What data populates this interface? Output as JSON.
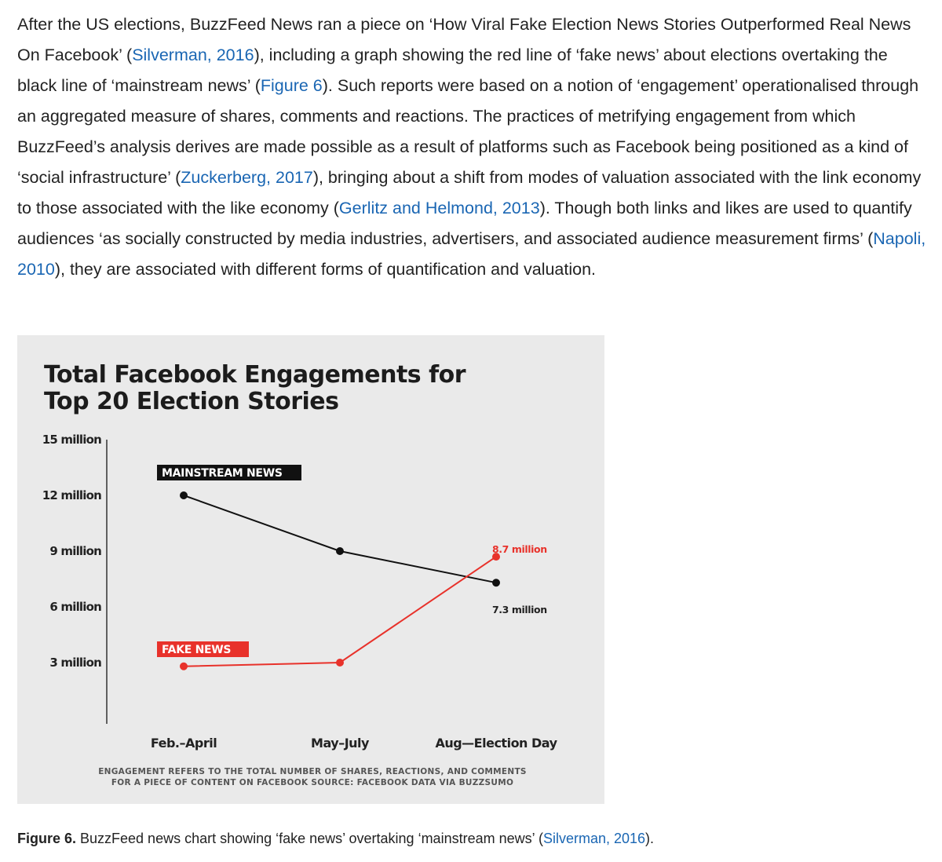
{
  "paragraph": {
    "t1": "After the US elections, BuzzFeed News ran a piece on ‘How Viral Fake Election News Stories Outperformed Real News On Facebook’ (",
    "link1": "Silverman, 2016",
    "t2": "), including a graph showing the red line of ‘fake news’ about elections overtaking the black line of ‘mainstream news’ (",
    "link2": "Figure 6",
    "t3": "). Such reports were based on a notion of ‘engagement’ operationalised through an aggregated measure of shares, comments and reactions. The practices of metrifying engagement from which BuzzFeed’s analysis derives are made possible as a result of platforms such as Facebook being positioned as a kind of ‘social infrastructure’ (",
    "link3": "Zuckerberg, 2017",
    "t4": "), bringing about a shift from modes of valuation associated with the link economy to those associated with the like economy (",
    "link4": "Gerlitz and Helmond, 2013",
    "t5": "). Though both links and likes are used to quantify audiences ‘as socially constructed by media industries, advertisers, and associated audience measurement firms’ (",
    "link5": "Napoli, 2010",
    "t6": "), they are associated with different forms of quantification and valuation."
  },
  "chart_data": {
    "type": "line",
    "title_line1": "Total Facebook Engagements for",
    "title_line2": "Top 20 Election Stories",
    "categories": [
      "Feb.–April",
      "May–July",
      "Aug—Election Day"
    ],
    "yticks": [
      {
        "value": 15,
        "label": "15 million"
      },
      {
        "value": 12,
        "label": "12 million"
      },
      {
        "value": 9,
        "label": "9 million"
      },
      {
        "value": 6,
        "label": "6 million"
      },
      {
        "value": 3,
        "label": "3 million"
      }
    ],
    "ylim": [
      0,
      15
    ],
    "grid": false,
    "series": [
      {
        "name": "MAINSTREAM NEWS",
        "color": "#111111",
        "values": [
          12.0,
          9.0,
          7.3
        ],
        "end_label": "7.3 million"
      },
      {
        "name": "FAKE NEWS",
        "color": "#e8322b",
        "values": [
          2.8,
          3.0,
          8.7
        ],
        "end_label": "8.7 million"
      }
    ],
    "footnote_line1": "ENGAGEMENT REFERS TO THE TOTAL NUMBER OF SHARES, REACTIONS, AND COMMENTS",
    "footnote_line2": "FOR A PIECE OF CONTENT ON FACEBOOK SOURCE: FACEBOOK DATA VIA BUZZSUMO"
  },
  "caption": {
    "label": "Figure 6.",
    "text": " BuzzFeed news chart showing ‘fake news’ overtaking ‘mainstream news’ (",
    "link": "Silverman, 2016",
    "end": ")."
  },
  "colors": {
    "link": "#1a66b3",
    "fake": "#e8322b",
    "mainstream": "#111111",
    "figure_bg": "#eaeaea"
  }
}
